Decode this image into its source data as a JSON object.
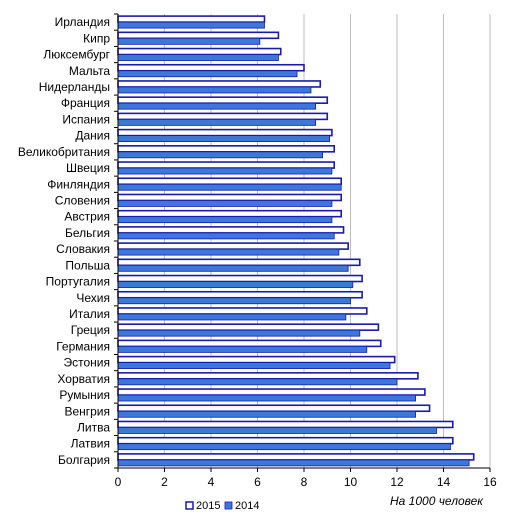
{
  "chart_data": {
    "type": "bar",
    "orientation": "horizontal",
    "title": "",
    "xlabel": "На 1000 человек",
    "ylabel": "",
    "xlim": [
      0,
      16
    ],
    "x_ticks": [
      "0",
      "2",
      "4",
      "6",
      "8",
      "10",
      "12",
      "14",
      "16"
    ],
    "grid": "vertical",
    "legend_position": "bottom-left",
    "categories": [
      "Ирландия",
      "Кипр",
      "Люксембург",
      "Мальта",
      "Нидерланды",
      "Франция",
      "Испания",
      "Дания",
      "Великобритания",
      "Швеция",
      "Финляндия",
      "Словения",
      "Австрия",
      "Бельгия",
      "Словакия",
      "Польша",
      "Португалия",
      "Чехия",
      "Италия",
      "Греция",
      "Германия",
      "Эстония",
      "Хорватия",
      "Румыния",
      "Венгрия",
      "Литва",
      "Латвия",
      "Болгария"
    ],
    "series": [
      {
        "name": "2015",
        "color": "#1a1ab0",
        "values": [
          6.3,
          6.9,
          7.0,
          8.0,
          8.7,
          9.0,
          9.0,
          9.2,
          9.3,
          9.3,
          9.6,
          9.6,
          9.6,
          9.7,
          9.9,
          10.4,
          10.5,
          10.5,
          10.7,
          11.2,
          11.3,
          11.9,
          12.9,
          13.2,
          13.4,
          14.4,
          14.4,
          15.3
        ]
      },
      {
        "name": "2014",
        "color": "#3c78d8",
        "values": [
          6.3,
          6.1,
          6.9,
          7.7,
          8.3,
          8.5,
          8.5,
          9.1,
          8.8,
          9.2,
          9.6,
          9.2,
          9.2,
          9.3,
          9.5,
          9.9,
          10.1,
          10.0,
          9.8,
          10.4,
          10.7,
          11.7,
          12.0,
          12.8,
          12.8,
          13.7,
          14.3,
          15.1
        ]
      }
    ]
  }
}
